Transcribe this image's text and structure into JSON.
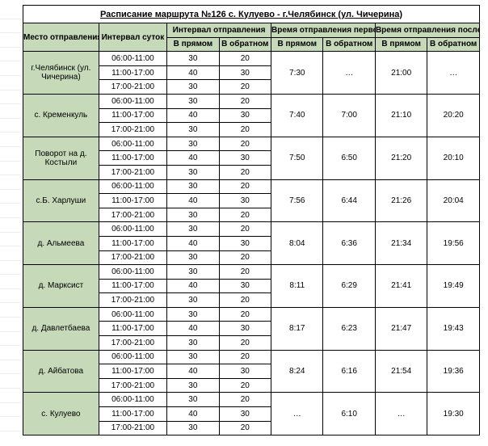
{
  "title": "Расписание маршрута №126 с. Кулуево - г.Челябинск (ул. Чичерина)",
  "headers": {
    "stop": "Место отправления",
    "period": "Интервал суток",
    "interval_group": "Интервал отправления",
    "first_group": "Время отправления первого рейса",
    "last_group": "Время отправления последнего рейса",
    "fwd": "В прямом",
    "rev": "В обратном"
  },
  "periods": [
    "06:00-11:00",
    "11:00-17:00",
    "17:00-21:00"
  ],
  "stops": [
    {
      "name": "г.Челябинск (ул. Чичерина)",
      "iv": [
        [
          30,
          20
        ],
        [
          40,
          30
        ],
        [
          30,
          20
        ]
      ],
      "first": [
        "7:30",
        "…"
      ],
      "last": [
        "21:00",
        "…"
      ]
    },
    {
      "name": "с. Кременкуль",
      "iv": [
        [
          30,
          20
        ],
        [
          40,
          30
        ],
        [
          30,
          20
        ]
      ],
      "first": [
        "7:40",
        "7:00"
      ],
      "last": [
        "21:10",
        "20:20"
      ]
    },
    {
      "name": "Поворот на д. Костыли",
      "iv": [
        [
          30,
          20
        ],
        [
          40,
          30
        ],
        [
          30,
          20
        ]
      ],
      "first": [
        "7:50",
        "6:50"
      ],
      "last": [
        "21:20",
        "20:10"
      ]
    },
    {
      "name": "с.Б. Харлуши",
      "iv": [
        [
          30,
          20
        ],
        [
          40,
          30
        ],
        [
          30,
          20
        ]
      ],
      "first": [
        "7:56",
        "6:44"
      ],
      "last": [
        "21:26",
        "20:04"
      ]
    },
    {
      "name": "д. Альмеева",
      "iv": [
        [
          30,
          20
        ],
        [
          40,
          30
        ],
        [
          30,
          20
        ]
      ],
      "first": [
        "8:04",
        "6:36"
      ],
      "last": [
        "21:34",
        "19:56"
      ]
    },
    {
      "name": "д. Марксист",
      "iv": [
        [
          30,
          20
        ],
        [
          40,
          30
        ],
        [
          30,
          20
        ]
      ],
      "first": [
        "8:11",
        "6:29"
      ],
      "last": [
        "21:41",
        "19:49"
      ]
    },
    {
      "name": "д. Давлетбаева",
      "iv": [
        [
          30,
          20
        ],
        [
          40,
          30
        ],
        [
          30,
          20
        ]
      ],
      "first": [
        "8:17",
        "6:23"
      ],
      "last": [
        "21:47",
        "19:43"
      ]
    },
    {
      "name": "д. Айбатова",
      "iv": [
        [
          30,
          20
        ],
        [
          40,
          30
        ],
        [
          30,
          20
        ]
      ],
      "first": [
        "8:24",
        "6:16"
      ],
      "last": [
        "21:54",
        "19:36"
      ]
    },
    {
      "name": "с. Кулуево",
      "iv": [
        [
          30,
          20
        ],
        [
          40,
          30
        ],
        [
          30,
          20
        ]
      ],
      "first": [
        "…",
        "6:10"
      ],
      "last": [
        "…",
        "19:30"
      ]
    }
  ],
  "colors": {
    "header_bg": "#c6d9b8",
    "border": "#000000",
    "rowlabel": "#888888"
  }
}
